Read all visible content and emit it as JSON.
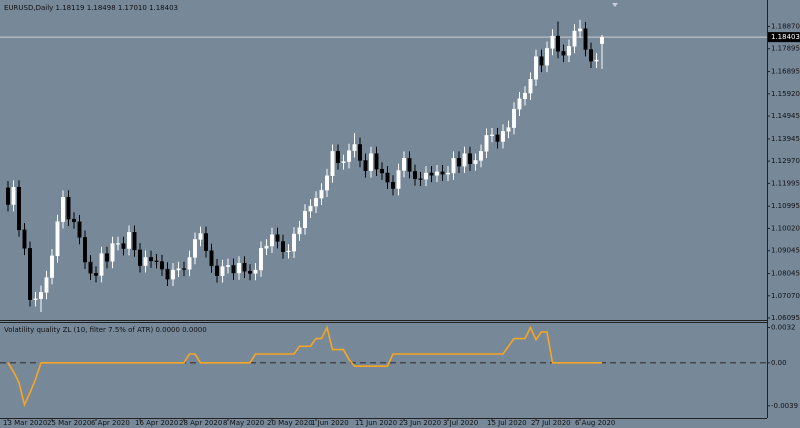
{
  "chart_data": [
    {
      "type": "candlestick",
      "info_line": "EURUSD,Daily  1.18119 1.18498 1.17010 1.18403",
      "categories": [
        "13 Mar 2020",
        null,
        null,
        null,
        null,
        null,
        null,
        null,
        "25 Mar 2020",
        null,
        null,
        null,
        null,
        null,
        null,
        null,
        "6 Apr 2020",
        null,
        null,
        null,
        null,
        null,
        null,
        null,
        "16 Apr 2020",
        null,
        null,
        null,
        null,
        null,
        null,
        null,
        "28 Apr 2020",
        null,
        null,
        null,
        null,
        null,
        null,
        null,
        "8 May 2020",
        null,
        null,
        null,
        null,
        null,
        null,
        null,
        "20 May 2020",
        null,
        null,
        null,
        null,
        null,
        null,
        null,
        "1 Jun 2020",
        null,
        null,
        null,
        null,
        null,
        null,
        null,
        "11 Jun 2020",
        null,
        null,
        null,
        null,
        null,
        null,
        null,
        "23 Jun 2020",
        null,
        null,
        null,
        null,
        null,
        null,
        null,
        "3 Jul 2020",
        null,
        null,
        null,
        null,
        null,
        null,
        null,
        "15 Jul 2020",
        null,
        null,
        null,
        null,
        null,
        null,
        null,
        "27 Jul 2020",
        null,
        null,
        null,
        null,
        null,
        null,
        null,
        "6 Aug 2020",
        null,
        null,
        null,
        null
      ],
      "open": [
        1.118,
        1.1107,
        1.1183,
        1.0996,
        1.0915,
        1.069,
        1.0694,
        1.0722,
        1.0787,
        1.0882,
        1.1032,
        1.1139,
        1.1043,
        1.1031,
        1.0963,
        1.0855,
        1.0806,
        1.0796,
        1.0892,
        1.0858,
        1.0936,
        1.0936,
        1.0914,
        1.0985,
        1.0908,
        1.0839,
        1.0875,
        1.086,
        1.0857,
        1.0824,
        1.078,
        1.082,
        1.0826,
        1.0823,
        1.0875,
        1.0954,
        1.098,
        1.0905,
        1.0838,
        1.0795,
        1.0835,
        1.084,
        1.0807,
        1.085,
        1.0815,
        1.0805,
        1.082,
        1.0915,
        1.0925,
        1.0975,
        1.0945,
        1.09,
        1.0903,
        1.0978,
        1.1005,
        1.1078,
        1.11,
        1.1135,
        1.117,
        1.1233,
        1.134,
        1.129,
        1.1295,
        1.1343,
        1.137,
        1.13,
        1.1255,
        1.133,
        1.1262,
        1.1245,
        1.1205,
        1.1177,
        1.1256,
        1.131,
        1.1252,
        1.122,
        1.1218,
        1.1245,
        1.1235,
        1.125,
        1.124,
        1.1245,
        1.131,
        1.1275,
        1.133,
        1.1285,
        1.13,
        1.134,
        1.141,
        1.1412,
        1.1383,
        1.1428,
        1.1444,
        1.1525,
        1.157,
        1.1595,
        1.1656,
        1.1755,
        1.1717,
        1.1791,
        1.1845,
        1.1778,
        1.1761,
        1.18,
        1.1867,
        1.1877,
        1.1786,
        1.1735,
        1.18119
      ],
      "high": [
        1.121,
        1.1213,
        1.1213,
        1.1026,
        1.0945,
        1.0724,
        1.0752,
        1.0817,
        1.0912,
        1.1062,
        1.1169,
        1.1169,
        1.1073,
        1.1061,
        1.0993,
        1.0885,
        1.0836,
        1.0922,
        1.0922,
        1.0966,
        1.0966,
        1.0966,
        1.1015,
        1.1015,
        1.0938,
        1.0905,
        1.0905,
        1.089,
        1.0887,
        1.0854,
        1.085,
        1.0856,
        1.0856,
        1.0905,
        1.0984,
        1.101,
        1.101,
        1.0935,
        1.0868,
        1.0865,
        1.087,
        1.087,
        1.088,
        1.088,
        1.0845,
        1.085,
        1.0945,
        1.0955,
        1.1005,
        1.1005,
        1.0975,
        1.0933,
        1.1008,
        1.1035,
        1.1108,
        1.113,
        1.1165,
        1.12,
        1.1263,
        1.137,
        1.137,
        1.1325,
        1.1373,
        1.142,
        1.14,
        1.133,
        1.136,
        1.136,
        1.1292,
        1.1275,
        1.1235,
        1.1286,
        1.134,
        1.134,
        1.1282,
        1.125,
        1.1275,
        1.1275,
        1.128,
        1.128,
        1.1275,
        1.134,
        1.134,
        1.136,
        1.136,
        1.133,
        1.137,
        1.144,
        1.1442,
        1.1442,
        1.1458,
        1.1474,
        1.1555,
        1.16,
        1.1625,
        1.1686,
        1.1785,
        1.1785,
        1.1821,
        1.1875,
        1.1908,
        1.1808,
        1.183,
        1.1897,
        1.1916,
        1.1907,
        1.1816,
        1.177,
        1.18498
      ],
      "low": [
        1.1077,
        1.1077,
        1.0966,
        1.0885,
        1.066,
        1.066,
        1.0636,
        1.0692,
        1.0757,
        1.0852,
        1.1002,
        1.1013,
        1.1001,
        1.0933,
        1.0825,
        1.0776,
        1.0766,
        1.0766,
        1.0828,
        1.0828,
        1.0906,
        1.0884,
        1.0884,
        1.0878,
        1.0809,
        1.0809,
        1.083,
        1.0827,
        1.0794,
        1.075,
        1.075,
        1.079,
        1.0793,
        1.0793,
        1.0845,
        1.0924,
        1.0875,
        1.0808,
        1.0765,
        1.0765,
        1.0805,
        1.0777,
        1.0777,
        1.0785,
        1.0775,
        1.0775,
        1.079,
        1.0885,
        1.0895,
        1.0915,
        1.087,
        1.087,
        1.0873,
        1.0948,
        1.0975,
        1.1048,
        1.107,
        1.1105,
        1.114,
        1.1203,
        1.126,
        1.126,
        1.1265,
        1.1313,
        1.127,
        1.1225,
        1.1225,
        1.1232,
        1.1215,
        1.1175,
        1.1147,
        1.1147,
        1.1226,
        1.1222,
        1.119,
        1.1188,
        1.1188,
        1.1205,
        1.1205,
        1.121,
        1.121,
        1.1215,
        1.1245,
        1.1245,
        1.1255,
        1.1255,
        1.127,
        1.131,
        1.138,
        1.1353,
        1.1353,
        1.1398,
        1.1414,
        1.1495,
        1.154,
        1.1565,
        1.1626,
        1.1687,
        1.1687,
        1.1761,
        1.1748,
        1.1731,
        1.1731,
        1.177,
        1.1837,
        1.1756,
        1.1705,
        1.1705,
        1.1701
      ],
      "close": [
        1.1107,
        1.1183,
        1.0996,
        1.0915,
        1.069,
        1.0694,
        1.0722,
        1.0787,
        1.0882,
        1.1032,
        1.1139,
        1.1043,
        1.1031,
        1.0963,
        1.0855,
        1.0806,
        1.0796,
        1.0892,
        1.0858,
        1.0936,
        1.0936,
        1.0914,
        1.0985,
        1.0908,
        1.0839,
        1.0875,
        1.086,
        1.0857,
        1.0824,
        1.078,
        1.082,
        1.0826,
        1.0823,
        1.0875,
        1.0954,
        1.098,
        1.0905,
        1.0838,
        1.0795,
        1.0835,
        1.084,
        1.0807,
        1.085,
        1.0815,
        1.0805,
        1.082,
        1.0915,
        1.0925,
        1.0975,
        1.0945,
        1.09,
        1.0903,
        1.0978,
        1.1005,
        1.1078,
        1.11,
        1.1135,
        1.117,
        1.1233,
        1.134,
        1.129,
        1.1295,
        1.1343,
        1.137,
        1.13,
        1.1255,
        1.133,
        1.1262,
        1.1245,
        1.1205,
        1.1177,
        1.1256,
        1.131,
        1.1252,
        1.122,
        1.1218,
        1.1245,
        1.1235,
        1.125,
        1.124,
        1.1245,
        1.131,
        1.1275,
        1.133,
        1.1285,
        1.13,
        1.134,
        1.141,
        1.1412,
        1.1383,
        1.1428,
        1.1444,
        1.1525,
        1.157,
        1.1595,
        1.1656,
        1.1755,
        1.1717,
        1.1791,
        1.1845,
        1.1778,
        1.1761,
        1.18,
        1.1867,
        1.1877,
        1.1786,
        1.1735,
        1.174,
        1.18403
      ],
      "up_color": "#ffffff",
      "down_color": "#000000",
      "ylim": [
        1.0601,
        1.2003
      ],
      "yticks": [
        {
          "value": 1.1887,
          "label": "1.18870"
        },
        1.17895,
        1.16895,
        {
          "value": 1.1592,
          "label": "1.15920"
        },
        1.14945,
        1.13945,
        {
          "value": 1.1297,
          "label": "1.12970"
        },
        1.11995,
        1.10995,
        {
          "value": 1.1002,
          "label": "1.10020"
        },
        1.09045,
        1.08045,
        {
          "value": 1.0707,
          "label": "1.07070"
        },
        1.06095
      ],
      "last_price_line": true
    },
    {
      "type": "line",
      "title": "Volatility quality ZL (10, filter 7.5% of ATR) 0.0000 0.0000",
      "color": "#f5a623",
      "values": [
        0.0,
        -0.0008,
        -0.0018,
        -0.0038,
        -0.0027,
        -0.0015,
        0.0,
        0.0,
        0.0,
        0.0,
        0.0,
        0.0,
        0.0,
        0.0,
        0.0,
        0.0,
        0.0,
        0.0,
        0.0,
        0.0,
        0.0,
        0.0,
        0.0,
        0.0,
        0.0,
        0.0,
        0.0,
        0.0,
        0.0,
        0.0,
        0.0,
        0.0,
        0.0,
        0.0008,
        0.0008,
        0.0,
        0.0,
        0.0,
        0.0,
        0.0,
        0.0,
        0.0,
        0.0,
        0.0,
        0.0,
        0.0008,
        0.0008,
        0.0008,
        0.0008,
        0.0008,
        0.0008,
        0.0008,
        0.0008,
        0.0015,
        0.0015,
        0.0015,
        0.0022,
        0.0022,
        0.0032,
        0.0012,
        0.0012,
        0.0012,
        0.0003,
        -0.0003,
        -0.0003,
        -0.0003,
        -0.0003,
        -0.0003,
        -0.0003,
        -0.0003,
        0.0008,
        0.0008,
        0.0008,
        0.0008,
        0.0008,
        0.0008,
        0.0008,
        0.0008,
        0.0008,
        0.0008,
        0.0008,
        0.0008,
        0.0008,
        0.0008,
        0.0008,
        0.0008,
        0.0008,
        0.0008,
        0.0008,
        0.0008,
        0.0008,
        0.0015,
        0.0022,
        0.0022,
        0.0022,
        0.0032,
        0.0021,
        0.0028,
        0.0028,
        0.0,
        0.0,
        0.0,
        0.0,
        0.0,
        0.0,
        0.0,
        0.0,
        0.0,
        0.0
      ],
      "ylim": [
        -0.005,
        0.0037
      ],
      "yticks": [
        0.0032,
        {
          "value": 0,
          "label": "0.00"
        },
        -0.0039
      ]
    }
  ]
}
